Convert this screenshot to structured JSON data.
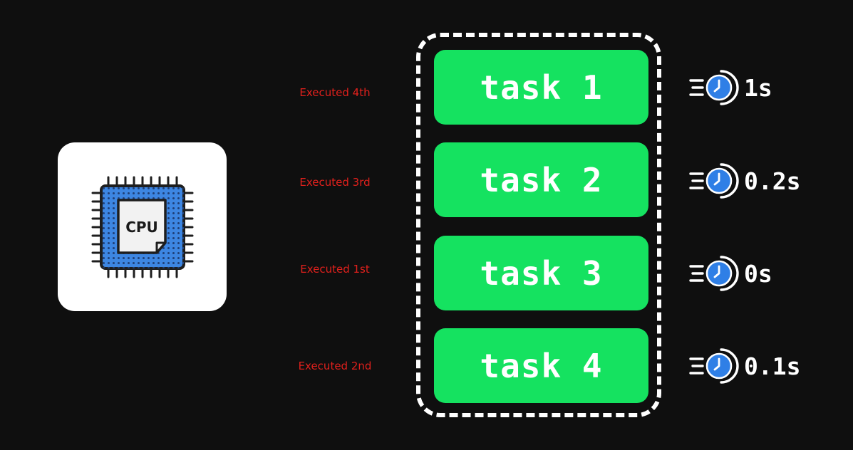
{
  "cpu": {
    "label": "CPU",
    "icon": "cpu-chip-icon",
    "colors": {
      "chip": "#3d86e2",
      "core": "#f2f2f2",
      "outline": "#1e1e1e"
    }
  },
  "queue": {
    "tasks": [
      {
        "label": "task 1",
        "execution_order": "Executed 4th",
        "duration": "1s"
      },
      {
        "label": "task 2",
        "execution_order": "Executed 3rd",
        "duration": "0.2s"
      },
      {
        "label": "task 3",
        "execution_order": "Executed 1st",
        "duration": "0s"
      },
      {
        "label": "task 4",
        "execution_order": "Executed 2nd",
        "duration": "0.1s"
      }
    ]
  },
  "timer_icon": "speed-clock-icon",
  "colors": {
    "background": "#0f0f0f",
    "task_fill": "#15e260",
    "execution_label": "#e0201c",
    "clock": "#2f7fe6"
  }
}
